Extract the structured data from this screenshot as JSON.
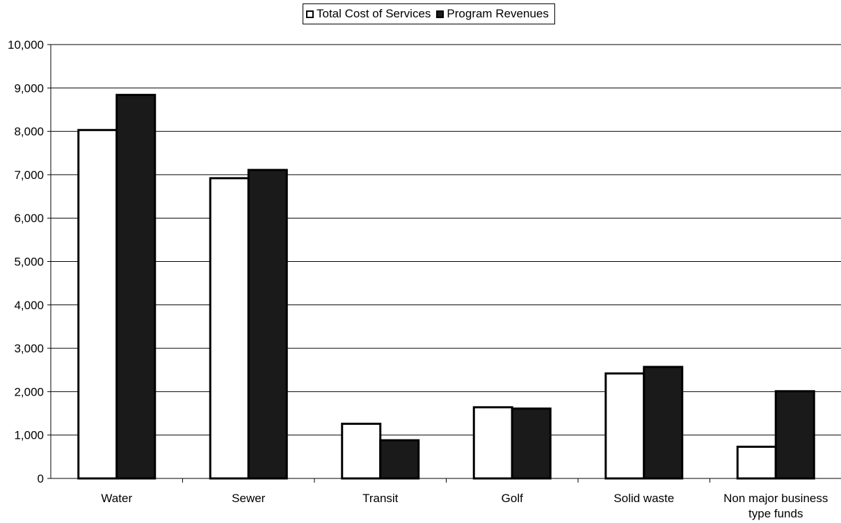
{
  "chart_data": {
    "type": "bar",
    "title": "",
    "xlabel": "",
    "ylabel": "",
    "categories": [
      "Water",
      "Sewer",
      "Transit",
      "Golf",
      "Solid waste",
      "Non major business type funds"
    ],
    "series": [
      {
        "name": "Total Cost of Services",
        "values": [
          8030,
          6920,
          1260,
          1640,
          2420,
          730
        ],
        "color": "#ffffff"
      },
      {
        "name": "Program Revenues",
        "values": [
          8840,
          7110,
          880,
          1610,
          2570,
          2010
        ],
        "color": "#1a1a1a"
      }
    ],
    "ylim": [
      0,
      10000
    ],
    "yticks": [
      "0",
      "1,000",
      "2,000",
      "3,000",
      "4,000",
      "5,000",
      "6,000",
      "7,000",
      "8,000",
      "9,000",
      "10,000"
    ],
    "grid": true,
    "legend_position": "top-center"
  }
}
